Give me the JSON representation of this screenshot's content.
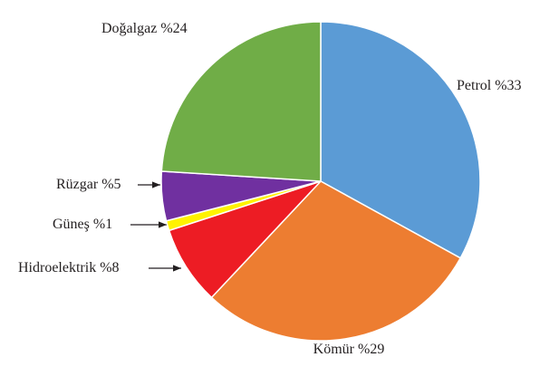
{
  "chart_data": {
    "type": "pie",
    "categories": [
      "Petrol",
      "Kömür",
      "Hidroelektrik",
      "Güneş",
      "Rüzgar",
      "Doğalgaz"
    ],
    "values": [
      33,
      29,
      8,
      1,
      5,
      24
    ],
    "value_labels": [
      "%33",
      "%29",
      "%8",
      "%1",
      "%5",
      "%24"
    ],
    "colors": [
      "#5b9bd5",
      "#ed7d31",
      "#ed1c24",
      "#fff200",
      "#7030a0",
      "#70ad47"
    ]
  }
}
